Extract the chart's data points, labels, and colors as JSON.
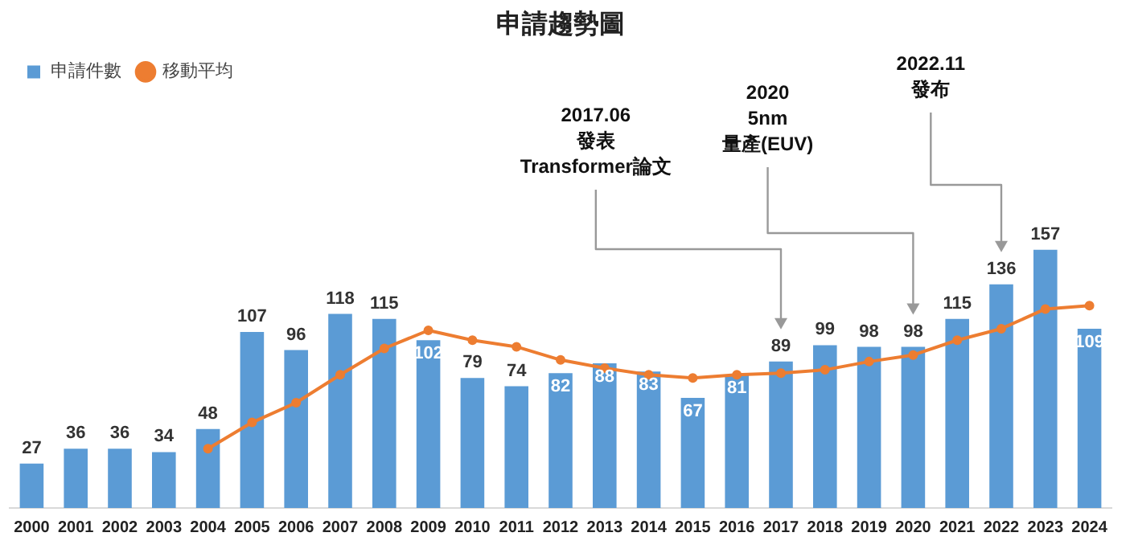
{
  "chart_data": {
    "type": "bar",
    "title": "申請趨勢圖",
    "categories": [
      "2000",
      "2001",
      "2002",
      "2003",
      "2004",
      "2005",
      "2006",
      "2007",
      "2008",
      "2009",
      "2010",
      "2011",
      "2012",
      "2013",
      "2014",
      "2015",
      "2016",
      "2017",
      "2018",
      "2019",
      "2020",
      "2021",
      "2022",
      "2023",
      "2024"
    ],
    "series": [
      {
        "name": "申請件數",
        "color": "#5b9bd5",
        "values": [
          27,
          36,
          36,
          34,
          48,
          107,
          96,
          118,
          115,
          102,
          79,
          74,
          82,
          88,
          83,
          67,
          81,
          89,
          99,
          98,
          98,
          115,
          136,
          157,
          109
        ],
        "value_labels": [
          "27",
          "36",
          "36",
          "34",
          "48",
          "107",
          "96",
          "118",
          "115",
          "102",
          "79",
          "74",
          "82",
          "88",
          "83",
          "67",
          "81",
          "89",
          "99",
          "98",
          "98",
          "115",
          "136",
          "157",
          "109"
        ]
      },
      {
        "name": "移動平均",
        "type": "line",
        "color": "#ed7d31",
        "marker": "circle",
        "values": [
          null,
          null,
          null,
          null,
          36,
          52,
          64,
          81,
          97,
          108,
          102,
          98,
          90,
          85,
          81,
          79,
          81,
          82,
          84,
          89,
          93,
          102,
          109,
          121,
          123
        ]
      }
    ],
    "annotations": [
      "2017.06\n發表\nTransformer論文",
      "2020\n5nm\n量產(EUV)",
      "2022.11\n發布"
    ],
    "legend": "top left",
    "grid": false
  }
}
